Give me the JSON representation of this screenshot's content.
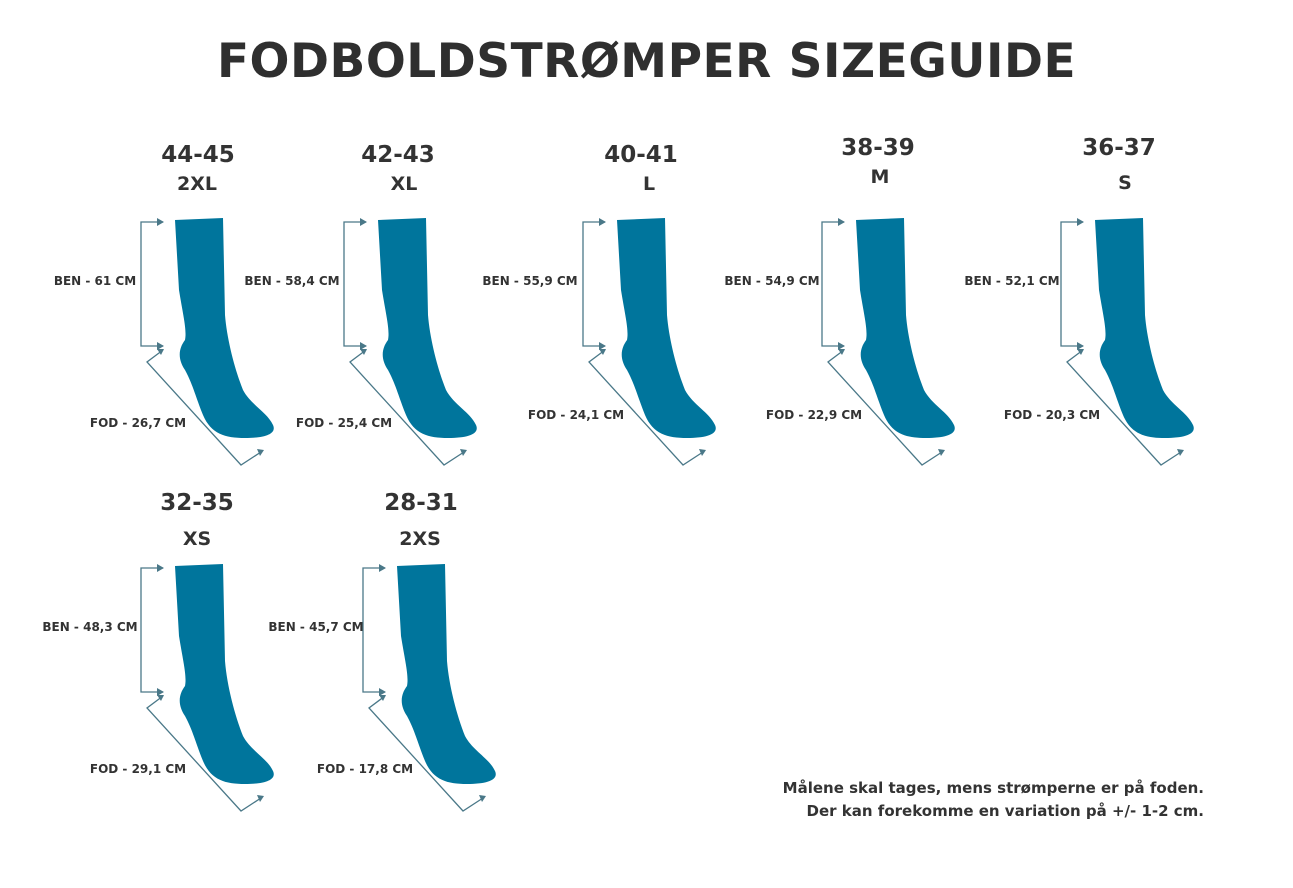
{
  "title": "FODBOLDSTRØMPER SIZEGUIDE",
  "colors": {
    "sock": "#00759c",
    "arrow": "#4a7888",
    "text": "#333333"
  },
  "sizes": [
    {
      "shoe": "44-45",
      "code": "2XL",
      "leg": "BEN - 61 CM",
      "foot": "FOD - 26,7 CM"
    },
    {
      "shoe": "42-43",
      "code": "XL",
      "leg": "BEN - 58,4 CM",
      "foot": "FOD - 25,4 CM"
    },
    {
      "shoe": "40-41",
      "code": "L",
      "leg": "BEN - 55,9 CM",
      "foot": "FOD - 24,1 CM"
    },
    {
      "shoe": "38-39",
      "code": "M",
      "leg": "BEN - 54,9 CM",
      "foot": "FOD - 22,9 CM"
    },
    {
      "shoe": "36-37",
      "code": "S",
      "leg": "BEN - 52,1 CM",
      "foot": "FOD - 20,3 CM"
    },
    {
      "shoe": "32-35",
      "code": "XS",
      "leg": "BEN - 48,3 CM",
      "foot": "FOD - 29,1 CM"
    },
    {
      "shoe": "28-31",
      "code": "2XS",
      "leg": "BEN - 45,7 CM",
      "foot": "FOD - 17,8 CM"
    }
  ],
  "note": {
    "line1": "Målene skal tages, mens strømperne er på foden.",
    "line2": "Der kan forekomme en variation på +/- 1-2 cm."
  }
}
